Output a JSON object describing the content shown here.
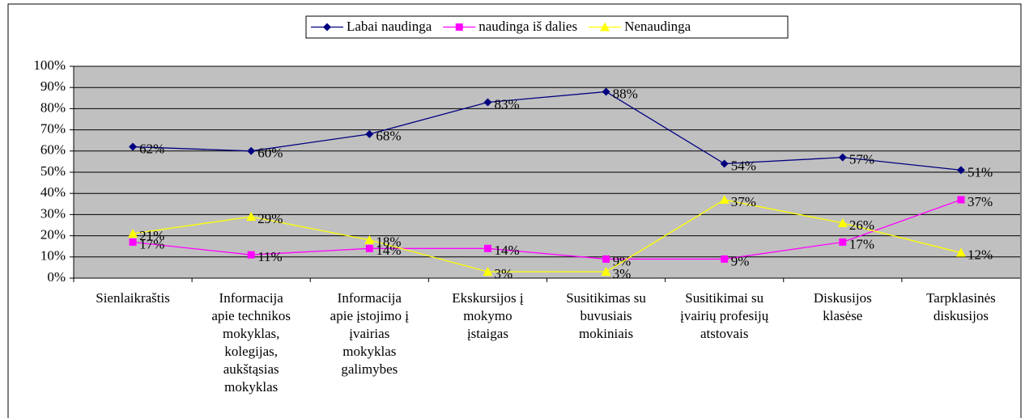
{
  "chart_data": {
    "type": "line",
    "categories": [
      "Sienlaikraštis",
      "Informacija\napie technikos\nmokyklas,\nkolegijas,\naukštąsias\nmokyklas",
      "Informacija\napie įstojimo į\nįvairias\nmokyklas\ngalimybes",
      "Ekskursijos į\nmokymo\nįstaigas",
      "Susitikimas su\nbuvusiais\nmokiniais",
      "Susitikimai su\nįvairių profesijų\natstovais",
      "Diskusijos\nklasėse",
      "Tarpklasinės\ndiskusijos"
    ],
    "series": [
      {
        "name": "Labai naudinga",
        "color": "#000080",
        "marker": "diamond",
        "values": [
          62,
          60,
          68,
          83,
          88,
          54,
          57,
          51
        ],
        "value_labels": [
          "62%",
          "60%",
          "68%",
          "83%",
          "88%",
          "54%",
          "57%",
          "51%"
        ]
      },
      {
        "name": "naudinga iš dalies",
        "color": "#ff00ff",
        "marker": "square",
        "values": [
          17,
          11,
          14,
          14,
          9,
          9,
          17,
          37
        ],
        "value_labels": [
          "17%",
          "11%",
          "14%",
          "14%",
          "9%",
          "9%",
          "17%",
          "37%"
        ]
      },
      {
        "name": "Nenaudinga",
        "color": "#ffff00",
        "marker": "triangle",
        "values": [
          21,
          29,
          18,
          3,
          3,
          37,
          26,
          12
        ],
        "value_labels": [
          "21%",
          "29%",
          "18%",
          "3%",
          "3%",
          "37%",
          "26%",
          "12%"
        ]
      }
    ],
    "ylim": [
      0,
      100
    ],
    "yticks": [
      {
        "value": 0,
        "label": "0%"
      },
      {
        "value": 10,
        "label": "10%"
      },
      {
        "value": 20,
        "label": "20%"
      },
      {
        "value": 30,
        "label": "30%"
      },
      {
        "value": 40,
        "label": "40%"
      },
      {
        "value": 50,
        "label": "50%"
      },
      {
        "value": 60,
        "label": "60%"
      },
      {
        "value": 70,
        "label": "70%"
      },
      {
        "value": 80,
        "label": "80%"
      },
      {
        "value": 90,
        "label": "90%"
      },
      {
        "value": 100,
        "label": "100%"
      }
    ],
    "grid": true,
    "legend": "top"
  }
}
